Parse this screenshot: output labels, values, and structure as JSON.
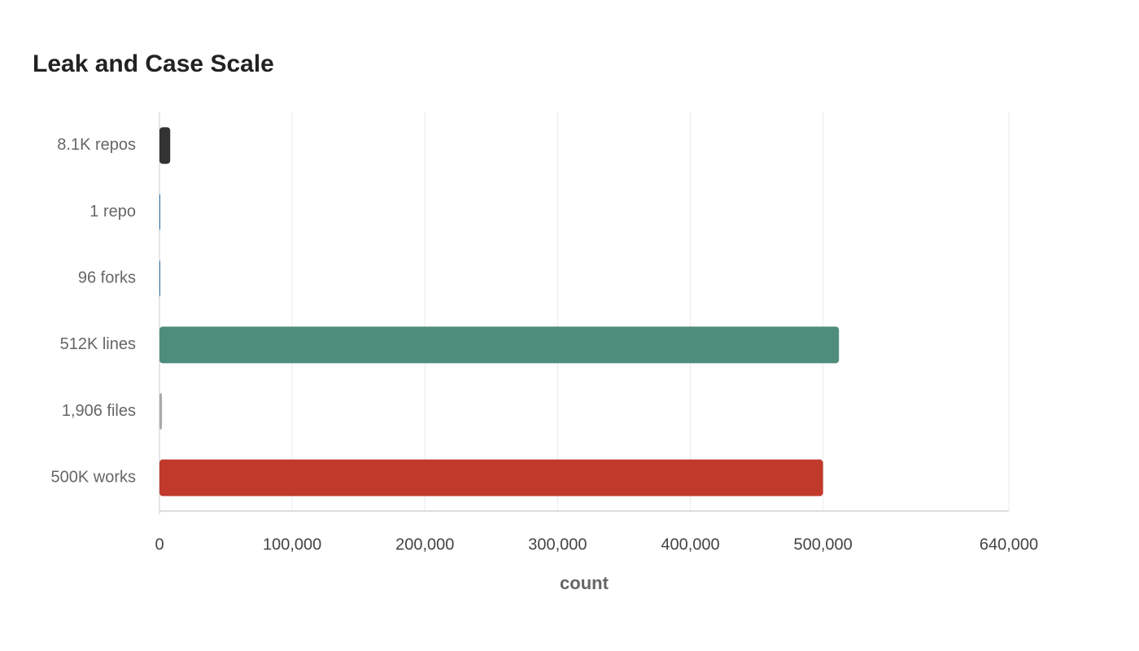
{
  "chart_data": {
    "type": "hbar",
    "title": "Leak and Case Scale",
    "categories": [
      "8.1K repos",
      "1 repo",
      "96 forks",
      "512K lines",
      "1,906 files",
      "500K works"
    ],
    "values": [
      8100,
      1,
      96,
      512000,
      1906,
      500000
    ],
    "colors": [
      "#333333",
      "#2e6da4",
      "#2e6da4",
      "#4e8c7c",
      "#aaaaaa",
      "#c0392b"
    ],
    "x_label": "count",
    "xlim": [
      0,
      640000
    ],
    "xticks": [
      0,
      {
        "value": 100000,
        "label": "100,000"
      },
      {
        "value": 200000,
        "label": "200,000"
      },
      {
        "value": 300000,
        "label": "300,000"
      },
      {
        "value": 400000,
        "label": "400,000"
      },
      {
        "value": 500000,
        "label": "500,000"
      },
      {
        "value": 640000,
        "label": "640,000"
      }
    ],
    "grid": true
  }
}
